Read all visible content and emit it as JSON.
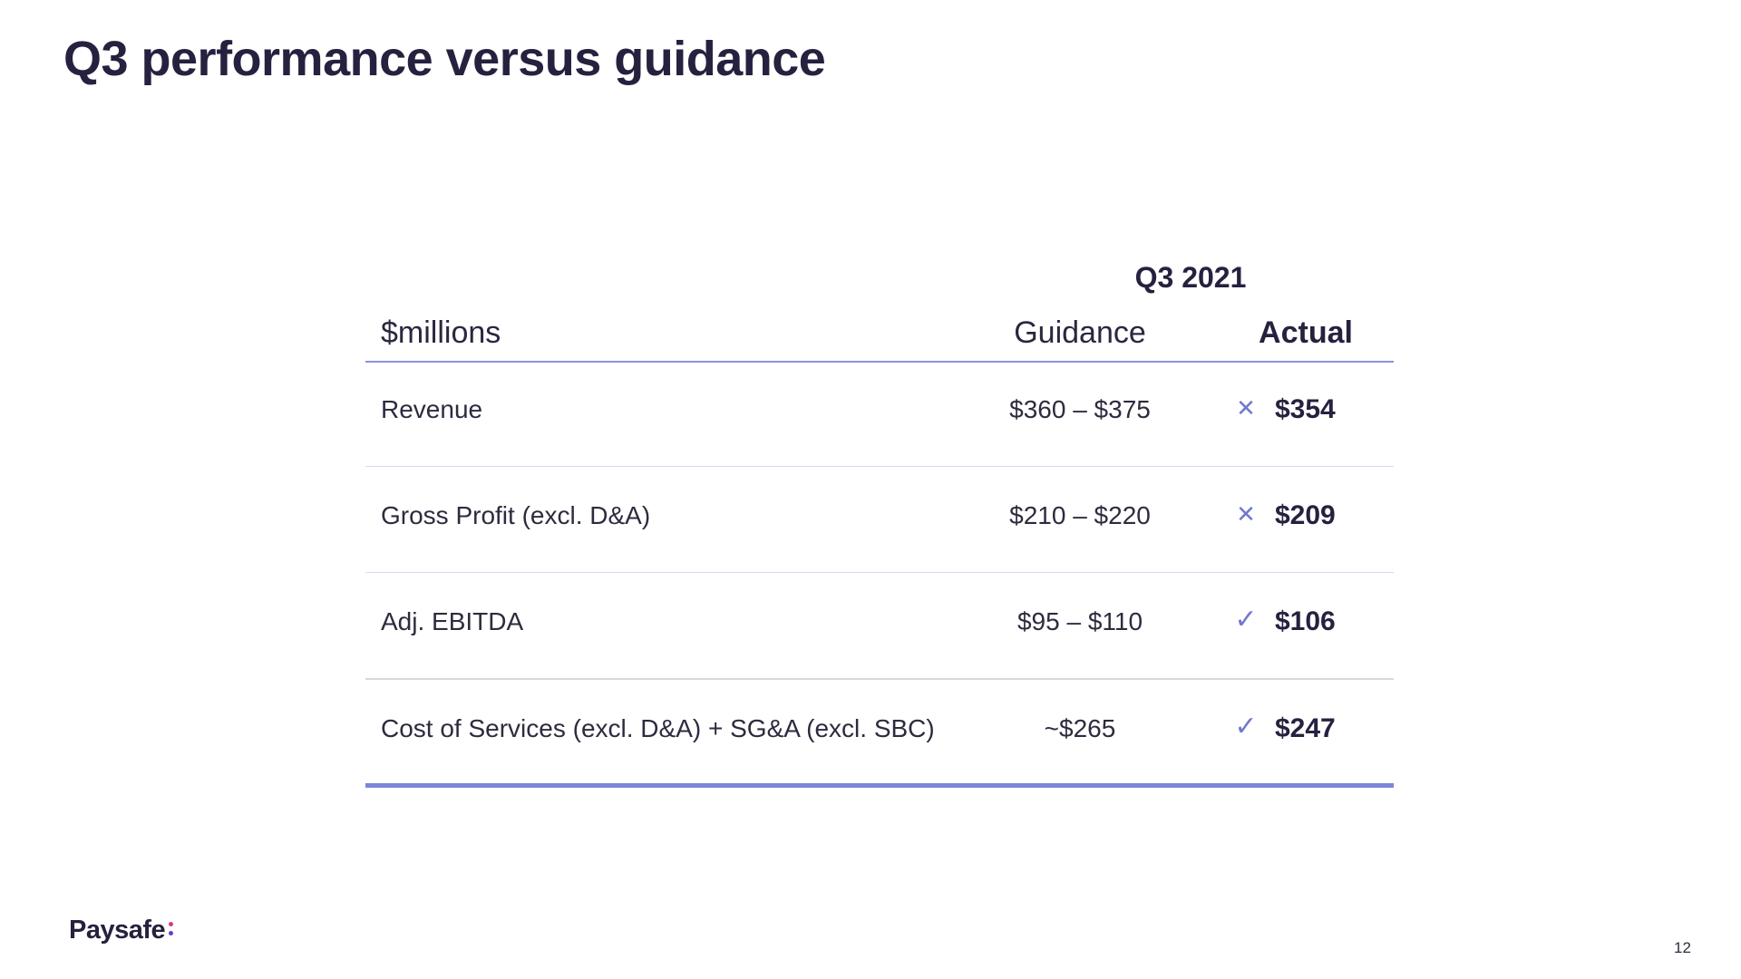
{
  "slide": {
    "title": "Q3 performance versus guidance",
    "page_number": "12"
  },
  "logo": {
    "text": "Paysafe",
    "accent_colors": [
      "#d6398a",
      "#6b3bd1"
    ]
  },
  "table": {
    "period_label": "Q3 2021",
    "headers": {
      "metric": "$millions",
      "guidance": "Guidance",
      "actual": "Actual"
    },
    "rows": [
      {
        "metric": "Revenue",
        "guidance": "$360 – $375",
        "status": "cross",
        "status_glyph": "✕",
        "actual": "$354"
      },
      {
        "metric": "Gross Profit (excl. D&A)",
        "guidance": "$210 – $220",
        "status": "cross",
        "status_glyph": "✕",
        "actual": "$209"
      },
      {
        "metric": "Adj. EBITDA",
        "guidance": "$95 – $110",
        "status": "check",
        "status_glyph": "✓",
        "actual": "$106"
      },
      {
        "metric": "Cost of Services (excl. D&A) + SG&A (excl. SBC)",
        "guidance": "~$265",
        "status": "check",
        "status_glyph": "✓",
        "actual": "$247"
      }
    ]
  },
  "colors": {
    "title": "#25213f",
    "accent_line": "#7b86d9",
    "status_icon": "#7179cf"
  }
}
